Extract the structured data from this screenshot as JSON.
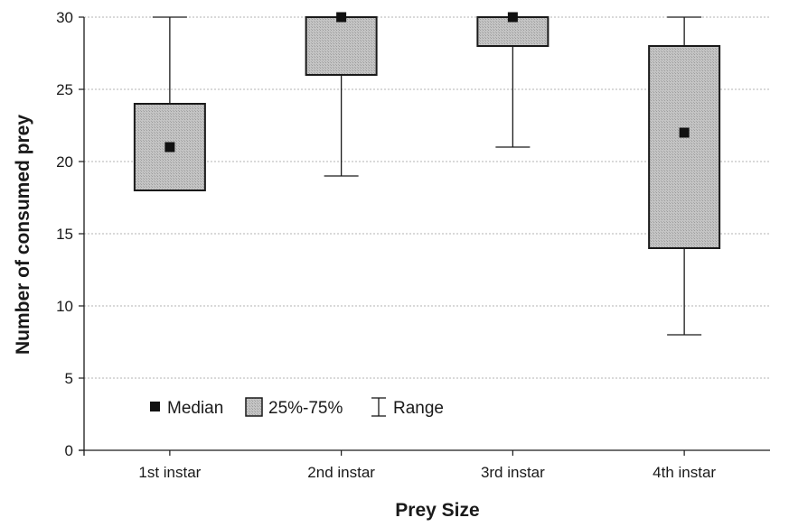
{
  "chart_data": {
    "type": "boxplot",
    "xlabel": "Prey Size",
    "ylabel": "Number of consumed prey",
    "ylim": [
      0,
      30
    ],
    "yticks": [
      0,
      5,
      10,
      15,
      20,
      25,
      30
    ],
    "grid": "horizontal dotted",
    "categories": [
      "1st instar",
      "2nd instar",
      "3rd instar",
      "4th instar"
    ],
    "boxes": [
      {
        "category": "1st instar",
        "min": 18,
        "q1": 18,
        "median": 21,
        "q3": 24,
        "max": 30
      },
      {
        "category": "2nd instar",
        "min": 19,
        "q1": 26,
        "median": 30,
        "q3": 30,
        "max": 30
      },
      {
        "category": "3rd instar",
        "min": 21,
        "q1": 28,
        "median": 30,
        "q3": 30,
        "max": 30
      },
      {
        "category": "4th instar",
        "min": 8,
        "q1": 14,
        "median": 22,
        "q3": 28,
        "max": 30
      }
    ],
    "legend": {
      "placement": "bottom-left",
      "items": [
        {
          "label": "Median",
          "symbol": "square"
        },
        {
          "label": "25%-75%",
          "symbol": "box"
        },
        {
          "label": "Range",
          "symbol": "whisker"
        }
      ]
    },
    "colors": {
      "box_fill": "#bdbdbd",
      "median": "#111111",
      "line": "#1a1a1a",
      "grid": "#9a9a9a"
    }
  }
}
